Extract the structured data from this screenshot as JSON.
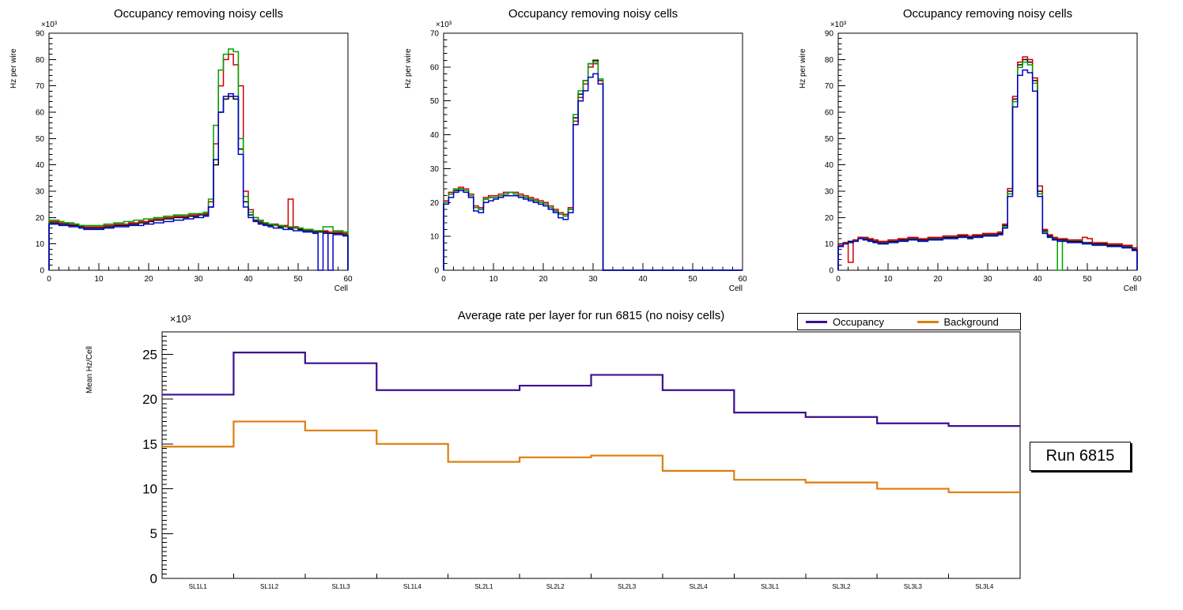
{
  "run_label": "Run 6815",
  "legend": {
    "items": [
      {
        "label": "Occupancy",
        "color": "#3b0f8f"
      },
      {
        "label": "Background",
        "color": "#dd7e0f"
      }
    ]
  },
  "chart_data": [
    {
      "id": "occupancy-hist-left",
      "type": "step-histogram",
      "title": "Occupancy removing noisy cells",
      "ylabel": "Hz per wire",
      "xlabel": "Cell",
      "y_scale_label": "×10³",
      "xlim": [
        0,
        60
      ],
      "ylim": [
        0,
        90
      ],
      "x_major": 10,
      "x_minor": 2,
      "y_major": 10,
      "y_minor": 2,
      "series": [
        {
          "name": "series-1",
          "color": "#000000",
          "values": [
            18,
            18,
            17.5,
            17.5,
            17,
            17,
            16.5,
            16,
            16,
            16,
            16,
            16.5,
            16.5,
            17,
            17,
            17,
            17.5,
            17.5,
            18,
            18,
            18.5,
            19,
            19,
            19.5,
            19.5,
            20,
            20,
            20,
            20.5,
            20.5,
            21,
            21,
            24,
            40,
            60,
            65,
            66,
            65,
            46,
            26,
            21,
            19,
            18,
            17.5,
            17,
            17,
            16.5,
            16.5,
            16,
            16,
            15.5,
            15,
            15,
            14.5,
            14.5,
            14.5,
            14,
            14,
            14,
            13.5
          ]
        },
        {
          "name": "series-2",
          "color": "#cc0000",
          "values": [
            18.5,
            18.5,
            18,
            18,
            17.5,
            17.5,
            17,
            16.5,
            16.5,
            16.5,
            16.5,
            17,
            17,
            17.5,
            17.5,
            17.5,
            18,
            18,
            18.5,
            18.5,
            19,
            19.5,
            19.5,
            20,
            20,
            20.5,
            20.5,
            20.5,
            21,
            21,
            21.5,
            21.5,
            26,
            48,
            70,
            80,
            82,
            78,
            70,
            30,
            23,
            20,
            18.5,
            18,
            17.5,
            17.5,
            17,
            17,
            27,
            16.5,
            16,
            15.5,
            15.5,
            15,
            15,
            15,
            14.5,
            14.5,
            14.5,
            14
          ]
        },
        {
          "name": "series-3",
          "color": "#00a000",
          "values": [
            19,
            19,
            18.5,
            18,
            18,
            17.5,
            17,
            17,
            17,
            17,
            17,
            17.5,
            17.5,
            18,
            18,
            18.5,
            18.5,
            19,
            19,
            19.5,
            19.5,
            20,
            20,
            20.5,
            20.5,
            21,
            21,
            21,
            21.5,
            21.5,
            21.5,
            22,
            27,
            55,
            76,
            82,
            84,
            83,
            50,
            28,
            22,
            20,
            19,
            18,
            17.5,
            17,
            17,
            16.5,
            16.5,
            16,
            16,
            15.5,
            15.5,
            15,
            15,
            16.5,
            16.5,
            15,
            15,
            14.5
          ]
        },
        {
          "name": "series-4",
          "color": "#0000cc",
          "values": [
            17.5,
            17.5,
            17,
            17,
            16.5,
            16.5,
            16,
            15.5,
            15.5,
            15.5,
            15.5,
            16,
            16,
            16.5,
            16.5,
            16.5,
            17,
            17,
            17,
            17.5,
            17.5,
            18,
            18,
            18.5,
            18.5,
            19,
            19,
            19.5,
            19.5,
            20,
            20,
            20.5,
            24,
            42,
            60,
            66,
            67,
            66,
            44,
            24,
            20,
            18.5,
            17.5,
            17,
            16.5,
            16,
            16,
            15.5,
            15.5,
            15,
            15,
            14.5,
            14.5,
            14,
            0,
            14,
            0,
            13.5,
            13.5,
            13
          ]
        }
      ]
    },
    {
      "id": "occupancy-hist-middle",
      "type": "step-histogram",
      "title": "Occupancy removing noisy cells",
      "ylabel": "Hz per wire",
      "xlabel": "Cell",
      "y_scale_label": "×10³",
      "xlim": [
        0,
        60
      ],
      "ylim": [
        0,
        70
      ],
      "x_major": 10,
      "x_minor": 2,
      "y_major": 10,
      "y_minor": 2,
      "series": [
        {
          "name": "series-1",
          "color": "#000000",
          "values": [
            20,
            22.5,
            23.5,
            24,
            23.5,
            22,
            18.5,
            18,
            21,
            21.5,
            21.5,
            22,
            22.5,
            23,
            22.5,
            22,
            21.5,
            21,
            20.5,
            20,
            19.5,
            18.5,
            17.5,
            16.5,
            16,
            18,
            45,
            52,
            56,
            61,
            62,
            56,
            0,
            0,
            0,
            0,
            0,
            0,
            0,
            0,
            0,
            0,
            0,
            0,
            0,
            0,
            0,
            0,
            0,
            0,
            0,
            0,
            0,
            0,
            0,
            0,
            0,
            0,
            0,
            0
          ]
        },
        {
          "name": "series-2",
          "color": "#cc0000",
          "values": [
            20.5,
            23,
            24,
            24.5,
            24,
            22.5,
            19,
            18.5,
            21.5,
            22,
            22,
            22.5,
            23,
            23,
            23,
            22.5,
            22,
            21.5,
            21,
            20.5,
            20,
            19,
            18,
            17,
            16.5,
            18.5,
            44,
            51,
            55,
            60,
            61,
            56,
            0,
            0,
            0,
            0,
            0,
            0,
            0,
            0,
            0,
            0,
            0,
            0,
            0,
            0,
            0,
            0,
            0,
            0,
            0,
            0,
            0,
            0,
            0,
            0,
            0,
            0,
            0,
            0
          ]
        },
        {
          "name": "series-3",
          "color": "#00a000",
          "values": [
            20,
            22.5,
            24,
            24,
            23.5,
            22,
            18.5,
            18,
            21,
            21.5,
            21.5,
            22,
            22.5,
            23,
            22.5,
            22,
            21.5,
            21,
            20.5,
            20,
            19.5,
            18.5,
            17.5,
            16.5,
            16,
            18,
            46,
            53,
            56,
            61,
            61.5,
            56.5,
            0,
            0,
            0,
            0,
            0,
            0,
            0,
            0,
            0,
            0,
            0,
            0,
            0,
            0,
            0,
            0,
            0,
            0,
            0,
            0,
            0,
            0,
            0,
            0,
            0,
            0,
            0,
            0
          ]
        },
        {
          "name": "series-4",
          "color": "#0000cc",
          "values": [
            19.5,
            21.5,
            23,
            23.5,
            23,
            21.5,
            17.5,
            17,
            20,
            20.5,
            21,
            21.5,
            22,
            22,
            22,
            21.5,
            21,
            20.5,
            20,
            19.5,
            19,
            18,
            17,
            15.5,
            15,
            17,
            43,
            50,
            53,
            57,
            58,
            55,
            0,
            0,
            0,
            0,
            0,
            0,
            0,
            0,
            0,
            0,
            0,
            0,
            0,
            0,
            0,
            0,
            0,
            0,
            0,
            0,
            0,
            0,
            0,
            0,
            0,
            0,
            0,
            0
          ]
        }
      ]
    },
    {
      "id": "occupancy-hist-right",
      "type": "step-histogram",
      "title": "Occupancy removing noisy cells",
      "ylabel": "Hz per wire",
      "xlabel": "Cell",
      "y_scale_label": "×10³",
      "xlim": [
        0,
        60
      ],
      "ylim": [
        0,
        90
      ],
      "x_major": 10,
      "x_minor": 2,
      "y_major": 10,
      "y_minor": 2,
      "series": [
        {
          "name": "series-1",
          "color": "#000000",
          "values": [
            9.5,
            10.5,
            11,
            11.5,
            12.5,
            12,
            11.5,
            11,
            10.5,
            10.5,
            11,
            11,
            11.5,
            11.5,
            12,
            12,
            11.5,
            11.5,
            12,
            12,
            12,
            12.5,
            12.5,
            12.5,
            13,
            13,
            12.5,
            13,
            13,
            13.5,
            13.5,
            13.5,
            14,
            17,
            30,
            65,
            78,
            80,
            79,
            72,
            30,
            15,
            13,
            12,
            11.5,
            11.5,
            11,
            11,
            11,
            10.5,
            10.5,
            10,
            10,
            10,
            9.5,
            9.5,
            9.5,
            9,
            9,
            8
          ]
        },
        {
          "name": "series-2",
          "color": "#cc0000",
          "values": [
            9.5,
            10.5,
            3,
            11.5,
            12.5,
            12.5,
            12,
            11.5,
            11,
            11,
            11.5,
            11.5,
            12,
            12,
            12.5,
            12.5,
            12,
            12,
            12.5,
            12.5,
            12.5,
            13,
            13,
            13,
            13.5,
            13.5,
            13,
            13.5,
            13.5,
            14,
            14,
            14,
            14.5,
            17.5,
            31,
            66,
            79,
            81,
            80,
            73,
            32,
            15.5,
            13.5,
            12.5,
            12,
            12,
            11.5,
            11.5,
            11.5,
            12.5,
            12,
            10.5,
            10.5,
            10.5,
            10,
            10,
            10,
            9.5,
            9.5,
            8.5
          ]
        },
        {
          "name": "series-3",
          "color": "#00a000",
          "values": [
            9,
            10,
            10.5,
            11,
            12,
            11.5,
            11,
            10.5,
            10,
            10,
            10.5,
            10.5,
            11,
            11,
            11.5,
            11.5,
            11,
            11,
            11.5,
            11.5,
            11.5,
            12,
            12,
            12,
            12.5,
            12.5,
            12,
            12.5,
            12.5,
            13,
            13,
            13,
            13.5,
            16.5,
            29,
            64,
            77,
            79,
            78,
            71,
            29,
            14.5,
            12.5,
            11.5,
            0,
            11,
            10.5,
            10.5,
            10.5,
            10,
            10,
            9.5,
            9.5,
            9.5,
            9,
            9,
            9,
            8.5,
            8.5,
            7.5
          ]
        },
        {
          "name": "series-4",
          "color": "#0000cc",
          "values": [
            9,
            10,
            10.5,
            11,
            12,
            11.5,
            11,
            10.5,
            10,
            10,
            10.5,
            10.5,
            11,
            11,
            11.5,
            11.5,
            11,
            11,
            11.5,
            11.5,
            11.5,
            12,
            12,
            12,
            12.5,
            12.5,
            12,
            12.5,
            12.5,
            13,
            13,
            13,
            13.5,
            16,
            28,
            62,
            74,
            76,
            75,
            68,
            28,
            14,
            12.5,
            11.5,
            11,
            11,
            10.5,
            10.5,
            10.5,
            10,
            10,
            9.5,
            9.5,
            9.5,
            9,
            9,
            9,
            8.5,
            8.5,
            7.5
          ]
        }
      ]
    },
    {
      "id": "average-rate-per-layer",
      "type": "step-category",
      "title": "Average rate per layer for run 6815 (no noisy cells)",
      "ylabel": "Mean Hz/Cell",
      "y_scale_label": "×10³",
      "ylim": [
        0,
        27.5
      ],
      "y_major": 5,
      "y_minor": 0.5,
      "categories": [
        "SL1L1",
        "SL1L2",
        "SL1L3",
        "SL1L4",
        "SL2L1",
        "SL2L2",
        "SL2L3",
        "SL2L4",
        "SL3L1",
        "SL3L2",
        "SL3L3",
        "SL3L4"
      ],
      "series": [
        {
          "name": "Occupancy",
          "color": "#3b0f8f",
          "values": [
            20.5,
            25.2,
            24,
            21,
            21,
            21.5,
            22.7,
            21,
            18.5,
            18,
            17.3,
            17
          ]
        },
        {
          "name": "Background",
          "color": "#dd7e0f",
          "values": [
            14.7,
            17.5,
            16.5,
            15,
            13,
            13.5,
            13.7,
            12,
            11,
            10.7,
            10,
            9.6
          ]
        }
      ]
    }
  ]
}
